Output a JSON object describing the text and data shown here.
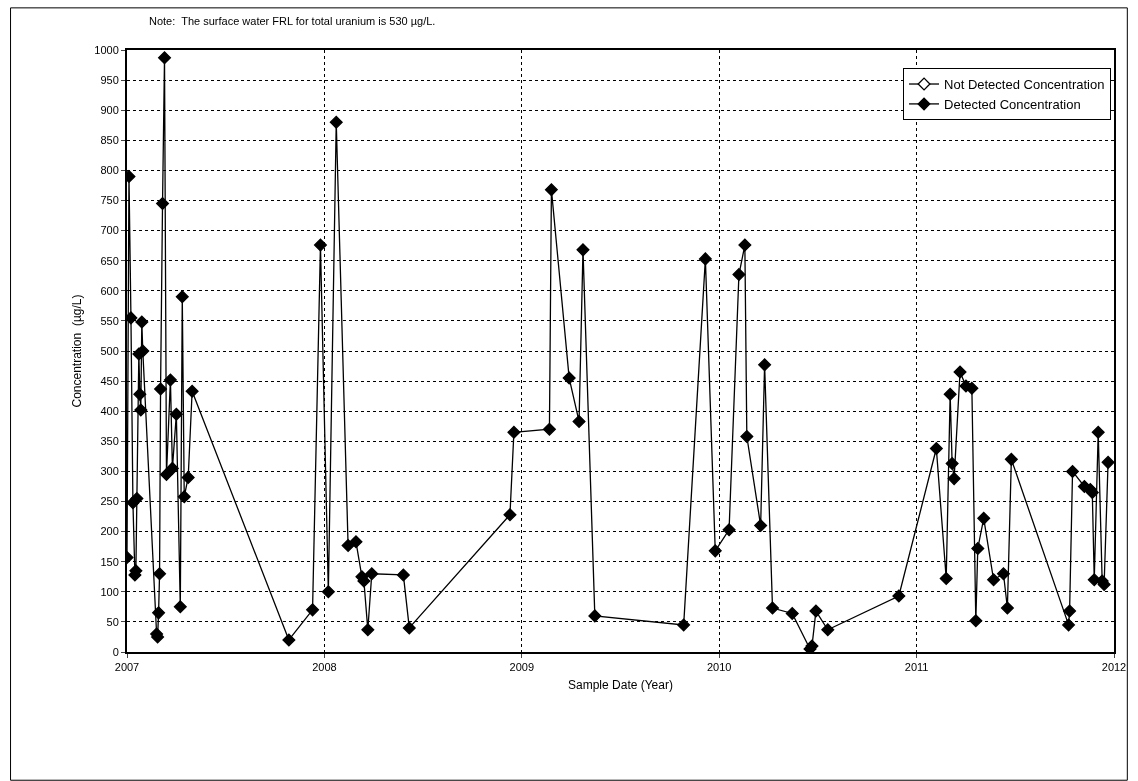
{
  "chart_data": {
    "type": "line",
    "xlabel": "Sample Date (Year)",
    "ylabel": "Concentration  (µg/L)",
    "annotations": [
      "Note:  The surface water FRL for total uranium is 530 µg/L."
    ],
    "xlim": [
      2007,
      2012
    ],
    "xticks": [
      2007,
      2008,
      2009,
      2010,
      2011,
      2012
    ],
    "ylim": [
      0,
      1000
    ],
    "yticks": [
      0,
      50,
      100,
      150,
      200,
      250,
      300,
      350,
      400,
      450,
      500,
      550,
      600,
      650,
      700,
      750,
      800,
      850,
      900,
      950,
      1000
    ],
    "grid": true,
    "legend": "top right",
    "marker": "diamond",
    "line_style": "solid",
    "series": [
      {
        "name": "Not Detected Concentration",
        "color": "#000000"
      },
      {
        "name": "Detected Concentration",
        "color": "#000000",
        "x": [
          2007.0,
          2007.01,
          2007.02,
          2007.03,
          2007.04,
          2007.045,
          2007.05,
          2007.06,
          2007.065,
          2007.07,
          2007.075,
          2007.08,
          2007.15,
          2007.155,
          2007.16,
          2007.165,
          2007.17,
          2007.18,
          2007.19,
          2007.2,
          2007.22,
          2007.23,
          2007.25,
          2007.27,
          2007.28,
          2007.29,
          2007.31,
          2007.33,
          2007.82,
          2007.94,
          2007.98,
          2008.02,
          2008.06,
          2008.12,
          2008.16,
          2008.19,
          2008.2,
          2008.22,
          2008.24,
          2008.4,
          2008.43,
          2008.94,
          2008.96,
          2009.14,
          2009.15,
          2009.24,
          2009.29,
          2009.31,
          2009.37,
          2009.82,
          2009.93,
          2009.98,
          2010.05,
          2010.1,
          2010.13,
          2010.14,
          2010.21,
          2010.23,
          2010.27,
          2010.37,
          2010.46,
          2010.47,
          2010.49,
          2010.55,
          2010.91,
          2011.1,
          2011.15,
          2011.17,
          2011.18,
          2011.19,
          2011.22,
          2011.25,
          2011.28,
          2011.3,
          2011.31,
          2011.34,
          2011.39,
          2011.44,
          2011.46,
          2011.48,
          2011.77,
          2011.775,
          2011.79,
          2011.85,
          2011.88,
          2011.89,
          2011.9,
          2011.92,
          2011.94,
          2011.95,
          2011.97
        ],
        "values": [
          157,
          790,
          555,
          248,
          128,
          135,
          255,
          495,
          428,
          402,
          548,
          500,
          30,
          25,
          65,
          130,
          437,
          745,
          987,
          295,
          452,
          305,
          395,
          75,
          590,
          258,
          290,
          433,
          20,
          70,
          676,
          100,
          880,
          177,
          183,
          125,
          118,
          37,
          130,
          128,
          40,
          228,
          365,
          370,
          768,
          455,
          383,
          668,
          60,
          45,
          653,
          168,
          203,
          627,
          676,
          358,
          210,
          477,
          73,
          64,
          5,
          10,
          68,
          37,
          93,
          338,
          122,
          428,
          313,
          288,
          465,
          442,
          438,
          52,
          172,
          222,
          120,
          130,
          73,
          320,
          45,
          68,
          300,
          275,
          270,
          265,
          120,
          365,
          118,
          112,
          315
        ]
      }
    ]
  }
}
